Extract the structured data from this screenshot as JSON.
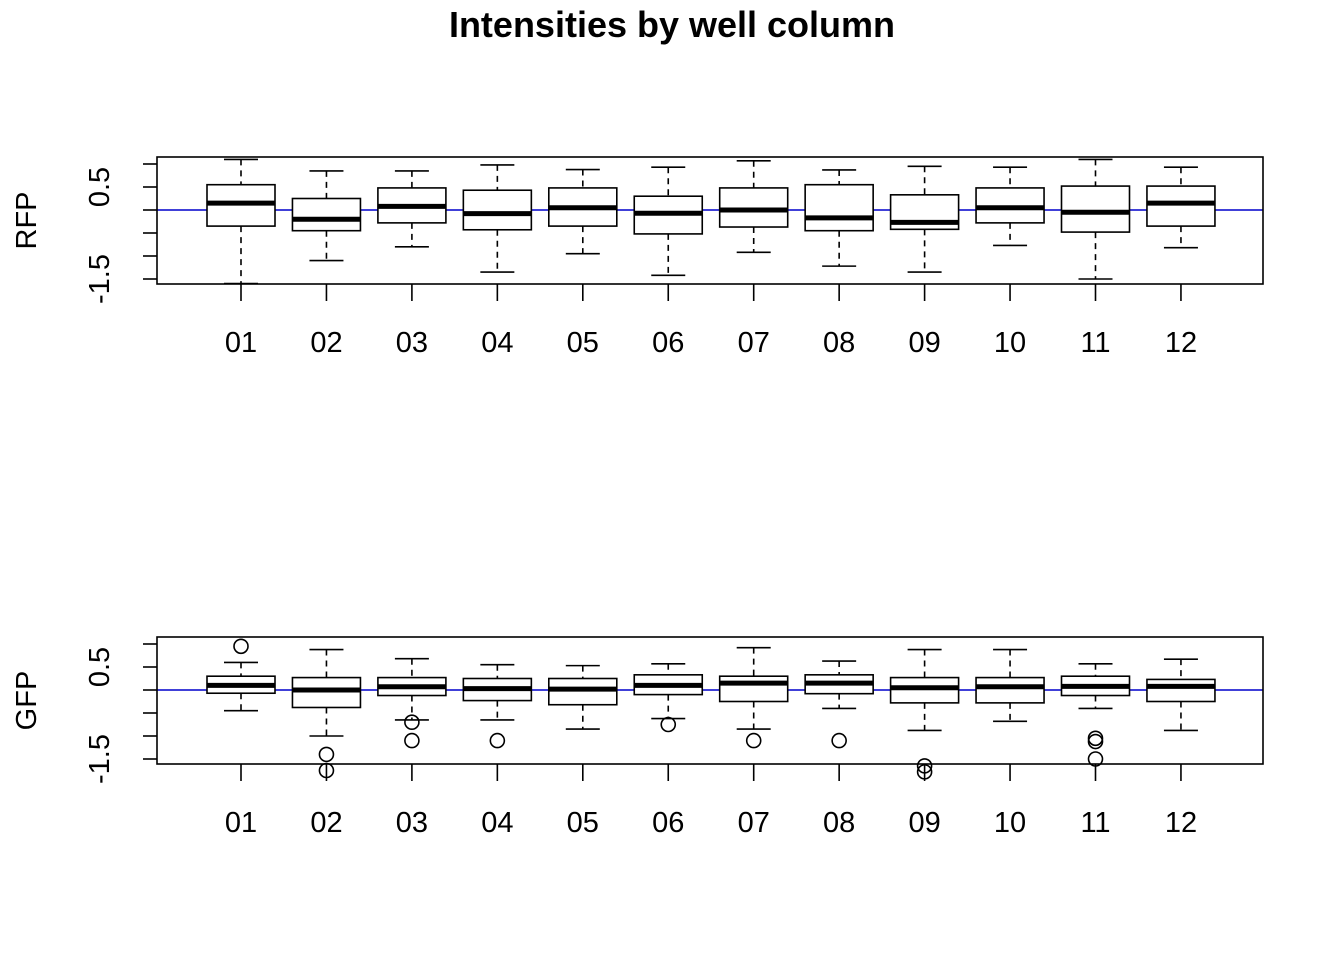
{
  "title": "Intensities by well column",
  "colors": {
    "reference_line": "#0000cc",
    "box": "#000000",
    "background": "#ffffff"
  },
  "chart_data": [
    {
      "type": "boxplot",
      "name": "RFP",
      "ylabel": "RFP",
      "ylim": [
        -2.0,
        1.2
      ],
      "yticks": [
        1.0,
        0.5,
        0.0,
        -0.5,
        -1.0,
        -1.5,
        -2.0
      ],
      "ytick_labels": [
        "0.5",
        "-1.5"
      ],
      "ytick_label_values": [
        0.5,
        -1.5
      ],
      "reference_line": 0.0,
      "categories": [
        "01",
        "02",
        "03",
        "04",
        "05",
        "06",
        "07",
        "08",
        "09",
        "10",
        "11",
        "12"
      ],
      "boxes": [
        {
          "min": -1.6,
          "q1": -0.35,
          "median": 0.15,
          "q3": 0.55,
          "max": 1.1,
          "outliers": []
        },
        {
          "min": -1.1,
          "q1": -0.45,
          "median": -0.2,
          "q3": 0.25,
          "max": 0.85,
          "outliers": []
        },
        {
          "min": -0.8,
          "q1": -0.28,
          "median": 0.08,
          "q3": 0.48,
          "max": 0.85,
          "outliers": []
        },
        {
          "min": -1.35,
          "q1": -0.43,
          "median": -0.08,
          "q3": 0.43,
          "max": 0.98,
          "outliers": []
        },
        {
          "min": -0.95,
          "q1": -0.35,
          "median": 0.05,
          "q3": 0.48,
          "max": 0.88,
          "outliers": []
        },
        {
          "min": -1.42,
          "q1": -0.52,
          "median": -0.07,
          "q3": 0.3,
          "max": 0.93,
          "outliers": []
        },
        {
          "min": -0.92,
          "q1": -0.37,
          "median": 0.0,
          "q3": 0.48,
          "max": 1.07,
          "outliers": []
        },
        {
          "min": -1.22,
          "q1": -0.45,
          "median": -0.17,
          "q3": 0.55,
          "max": 0.87,
          "outliers": []
        },
        {
          "min": -1.35,
          "q1": -0.42,
          "median": -0.27,
          "q3": 0.33,
          "max": 0.95,
          "outliers": []
        },
        {
          "min": -0.77,
          "q1": -0.28,
          "median": 0.05,
          "q3": 0.48,
          "max": 0.93,
          "outliers": []
        },
        {
          "min": -1.5,
          "q1": -0.48,
          "median": -0.05,
          "q3": 0.52,
          "max": 1.1,
          "outliers": []
        },
        {
          "min": -0.82,
          "q1": -0.35,
          "median": 0.15,
          "q3": 0.52,
          "max": 0.93,
          "outliers": []
        }
      ]
    },
    {
      "type": "boxplot",
      "name": "GFP",
      "ylabel": "GFP",
      "ylim": [
        -2.0,
        1.2
      ],
      "yticks": [
        1.0,
        0.5,
        0.0,
        -0.5,
        -1.0,
        -1.5,
        -2.0
      ],
      "ytick_labels": [
        "0.5",
        "-1.5"
      ],
      "ytick_label_values": [
        0.5,
        -1.5
      ],
      "reference_line": 0.0,
      "categories": [
        "01",
        "02",
        "03",
        "04",
        "05",
        "06",
        "07",
        "08",
        "09",
        "10",
        "11",
        "12"
      ],
      "boxes": [
        {
          "min": -0.45,
          "q1": -0.07,
          "median": 0.1,
          "q3": 0.3,
          "max": 0.6,
          "outliers": [
            0.95
          ]
        },
        {
          "min": -1.0,
          "q1": -0.38,
          "median": 0.0,
          "q3": 0.27,
          "max": 0.88,
          "outliers": [
            -1.4,
            -1.75
          ]
        },
        {
          "min": -0.65,
          "q1": -0.12,
          "median": 0.07,
          "q3": 0.27,
          "max": 0.68,
          "outliers": [
            -0.7,
            -1.1
          ]
        },
        {
          "min": -0.65,
          "q1": -0.23,
          "median": 0.03,
          "q3": 0.25,
          "max": 0.55,
          "outliers": [
            -1.1
          ]
        },
        {
          "min": -0.85,
          "q1": -0.32,
          "median": 0.02,
          "q3": 0.25,
          "max": 0.53,
          "outliers": []
        },
        {
          "min": -0.62,
          "q1": -0.1,
          "median": 0.1,
          "q3": 0.33,
          "max": 0.57,
          "outliers": [
            -0.75
          ]
        },
        {
          "min": -0.85,
          "q1": -0.25,
          "median": 0.15,
          "q3": 0.3,
          "max": 0.92,
          "outliers": [
            -1.1
          ]
        },
        {
          "min": -0.4,
          "q1": -0.08,
          "median": 0.15,
          "q3": 0.33,
          "max": 0.63,
          "outliers": [
            -1.1
          ]
        },
        {
          "min": -0.88,
          "q1": -0.28,
          "median": 0.05,
          "q3": 0.27,
          "max": 0.88,
          "outliers": [
            -1.65,
            -1.78
          ]
        },
        {
          "min": -0.68,
          "q1": -0.28,
          "median": 0.07,
          "q3": 0.27,
          "max": 0.88,
          "outliers": []
        },
        {
          "min": -0.4,
          "q1": -0.12,
          "median": 0.08,
          "q3": 0.3,
          "max": 0.57,
          "outliers": [
            -1.05,
            -1.12,
            -1.5
          ]
        },
        {
          "min": -0.88,
          "q1": -0.25,
          "median": 0.08,
          "q3": 0.23,
          "max": 0.67,
          "outliers": []
        }
      ]
    }
  ]
}
